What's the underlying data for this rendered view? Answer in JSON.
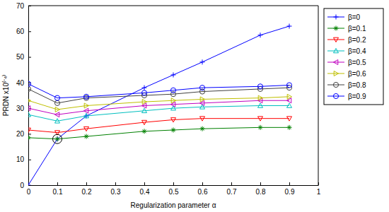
{
  "chart_data": {
    "type": "line",
    "x_label": "Regularization parameter α",
    "y_label": "PRDN x10⁽⁻⁴⁾",
    "x": [
      0,
      0.1,
      0.2,
      0.4,
      0.5,
      0.6,
      0.8,
      0.9
    ],
    "xlim": [
      0,
      1
    ],
    "xticks": [
      0,
      0.1,
      0.2,
      0.3,
      0.4,
      0.5,
      0.6,
      0.7,
      0.8,
      0.9,
      1
    ],
    "ylim": [
      0,
      70
    ],
    "yticks": [
      0,
      10,
      20,
      30,
      40,
      50,
      60,
      70
    ],
    "grid": false,
    "legend": "right",
    "series": [
      {
        "name": "β=0",
        "color": "#0000ff",
        "marker": "plus",
        "values": [
          0,
          18,
          27,
          38,
          43,
          48,
          58.5,
          62
        ]
      },
      {
        "name": "β=0.1",
        "color": "#008000",
        "marker": "star",
        "values": [
          18.5,
          18,
          19,
          21,
          21.5,
          22,
          22.5,
          22.5
        ]
      },
      {
        "name": "β=0.2",
        "color": "#ff0000",
        "marker": "triangle-down",
        "values": [
          21.5,
          20.5,
          22,
          24.5,
          25.5,
          26,
          26,
          26
        ]
      },
      {
        "name": "β=0.4",
        "color": "#00bfbf",
        "marker": "triangle-up",
        "values": [
          27.5,
          25,
          27,
          29,
          30,
          30.5,
          31,
          31
        ]
      },
      {
        "name": "β=0.5",
        "color": "#bf00bf",
        "marker": "triangle-left",
        "values": [
          30,
          27.5,
          29,
          31,
          31.5,
          32,
          33,
          33
        ]
      },
      {
        "name": "β=0.6",
        "color": "#bfbf00",
        "marker": "triangle-right",
        "values": [
          33,
          29.5,
          31,
          32.5,
          33,
          33.5,
          34,
          34.5
        ]
      },
      {
        "name": "β=0.8",
        "color": "#404040",
        "marker": "circle",
        "values": [
          37.5,
          32,
          34,
          35,
          35.5,
          36.5,
          37.5,
          38
        ]
      },
      {
        "name": "β=0.9",
        "color": "#0000ff",
        "marker": "circle",
        "values": [
          39.5,
          34,
          34.5,
          36,
          37,
          38,
          38.5,
          39
        ]
      }
    ]
  }
}
